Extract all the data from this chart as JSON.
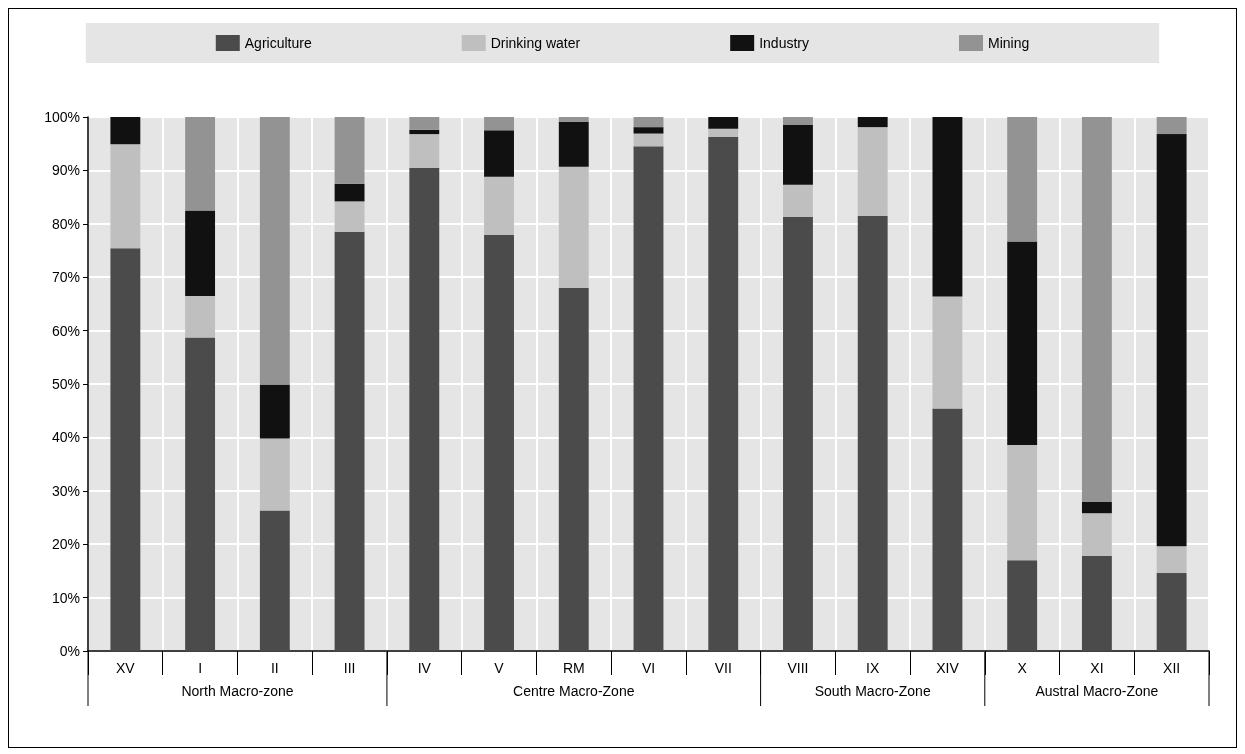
{
  "chart_data": {
    "type": "bar",
    "stacked": true,
    "categories": [
      "XV",
      "I",
      "II",
      "III",
      "IV",
      "V",
      "RM",
      "VI",
      "VII",
      "VIII",
      "IX",
      "XIV",
      "X",
      "XI",
      "XII"
    ],
    "series": [
      {
        "name": "Agriculture",
        "color": "#4b4b4b",
        "values": [
          75.4,
          58.7,
          26.3,
          78.5,
          90.5,
          77.9,
          68.0,
          94.5,
          96.3,
          81.3,
          81.5,
          45.4,
          17.0,
          17.8,
          14.6
        ]
      },
      {
        "name": "Drinking water",
        "color": "#bfbfbf",
        "values": [
          19.5,
          7.8,
          13.5,
          5.7,
          6.3,
          10.9,
          22.7,
          2.4,
          1.5,
          6.0,
          16.6,
          21.0,
          21.6,
          8.0,
          5.0
        ]
      },
      {
        "name": "Industry",
        "color": "#111111",
        "values": [
          5.1,
          16.0,
          10.1,
          3.3,
          0.8,
          8.7,
          8.4,
          1.2,
          2.2,
          11.2,
          1.9,
          33.6,
          38.1,
          2.1,
          77.2
        ]
      },
      {
        "name": "Mining",
        "color": "#939393",
        "values": [
          0,
          17.5,
          50.1,
          12.5,
          2.4,
          2.5,
          0.9,
          1.9,
          0,
          1.5,
          0,
          0,
          23.3,
          72.1,
          3.2
        ]
      }
    ],
    "ylim": [
      0,
      100
    ],
    "yticks": [
      {
        "value": 0,
        "label": "0%"
      },
      {
        "value": 10,
        "label": "10%"
      },
      {
        "value": 20,
        "label": "20%"
      },
      {
        "value": 30,
        "label": "30%"
      },
      {
        "value": 40,
        "label": "40%"
      },
      {
        "value": 50,
        "label": "50%"
      },
      {
        "value": 60,
        "label": "60%"
      },
      {
        "value": 70,
        "label": "70%"
      },
      {
        "value": 80,
        "label": "80%"
      },
      {
        "value": 90,
        "label": "90%"
      },
      {
        "value": 100,
        "label": "100%"
      }
    ],
    "annotations": [
      "North Macro-zone",
      "Centre Macro-Zone",
      "South Macro-Zone",
      "Austral Macro-Zone"
    ],
    "grid": true,
    "legend": "top"
  }
}
